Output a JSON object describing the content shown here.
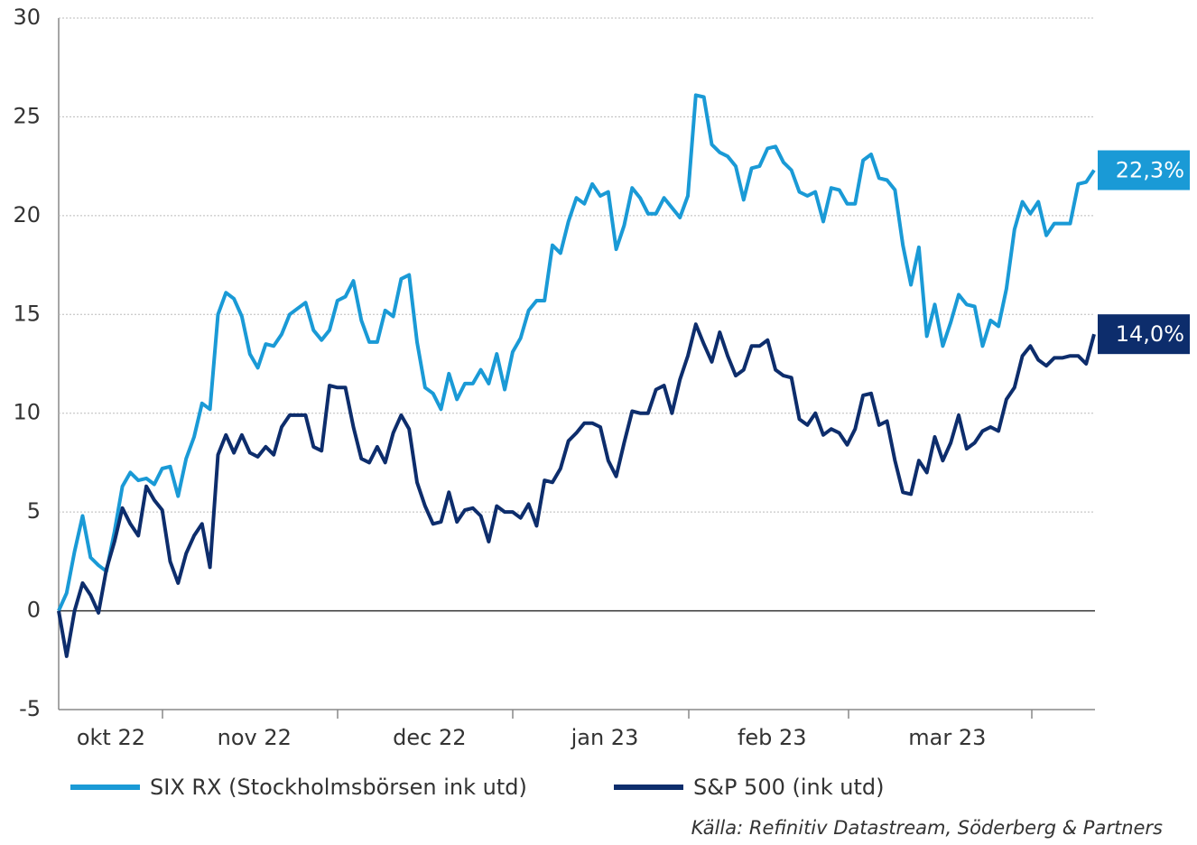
{
  "chart_data": {
    "type": "line",
    "categories": [
      null,
      null,
      null,
      null,
      null,
      null,
      "okt 22",
      null,
      null,
      null,
      null,
      null,
      null,
      null,
      null,
      null,
      null,
      null,
      null,
      null,
      null,
      null,
      null,
      null,
      "nov 22",
      null,
      null,
      null,
      null,
      null,
      null,
      null,
      null,
      null,
      null,
      null,
      null,
      null,
      null,
      null,
      null,
      null,
      null,
      null,
      null,
      null,
      "dec 22",
      null,
      null,
      null,
      null,
      null,
      null,
      null,
      null,
      null,
      null,
      null,
      null,
      null,
      null,
      null,
      null,
      null,
      null,
      null,
      null,
      null,
      "jan 23",
      null,
      null,
      null,
      null,
      null,
      null,
      null,
      null,
      null,
      null,
      null,
      null,
      null,
      null,
      null,
      null,
      null,
      null,
      null,
      null,
      "feb 23",
      null,
      null,
      null,
      null,
      null,
      null,
      null,
      null,
      null,
      null,
      null,
      null,
      null,
      null,
      null,
      null,
      null,
      null,
      null,
      null,
      null,
      "mar 23",
      null,
      null,
      null,
      null,
      null,
      null,
      null,
      null,
      null,
      null,
      null,
      null,
      null,
      null,
      null,
      null,
      null,
      null,
      null
    ],
    "series": [
      {
        "name": "SIX RX (Stockholmsbörsen ink utd)",
        "color": "#1a9ad6",
        "values": [
          0,
          0.9,
          3,
          4.8,
          2.7,
          2.3,
          2,
          4,
          6.3,
          7,
          6.6,
          6.7,
          6.4,
          7.2,
          7.3,
          5.8,
          7.7,
          8.8,
          10.5,
          10.2,
          15,
          16.1,
          15.8,
          14.9,
          13,
          12.3,
          13.5,
          13.4,
          14,
          15,
          15.3,
          15.6,
          14.2,
          13.7,
          14.2,
          15.7,
          15.9,
          16.7,
          14.7,
          13.6,
          13.6,
          15.2,
          14.9,
          16.8,
          17,
          13.6,
          11.3,
          11,
          10.2,
          12,
          10.7,
          11.5,
          11.5,
          12.2,
          11.5,
          13,
          11.2,
          13.1,
          13.8,
          15.2,
          15.7,
          15.7,
          18.5,
          18.1,
          19.7,
          20.9,
          20.6,
          21.6,
          21,
          21.2,
          18.3,
          19.5,
          21.4,
          20.9,
          20.1,
          20.1,
          20.9,
          20.4,
          19.9,
          21,
          26.1,
          26,
          23.6,
          23.2,
          23,
          22.5,
          20.8,
          22.4,
          22.5,
          23.4,
          23.5,
          22.7,
          22.3,
          21.2,
          21,
          21.2,
          19.7,
          21.4,
          21.3,
          20.6,
          20.6,
          22.8,
          23.1,
          21.9,
          21.8,
          21.3,
          18.5,
          16.5,
          18.4,
          13.9,
          15.5,
          13.4,
          14.6,
          16,
          15.5,
          15.4,
          13.4,
          14.7,
          14.4,
          16.3,
          19.3,
          20.7,
          20.1,
          20.7,
          19,
          19.6,
          19.6,
          19.6,
          21.6,
          21.7,
          22.3
        ],
        "value_labels": [
          null,
          null,
          null,
          null,
          null,
          null,
          null,
          null,
          null,
          null,
          null,
          null,
          null,
          null,
          null,
          null,
          null,
          null,
          null,
          null,
          null,
          null,
          null,
          null,
          null,
          null,
          null,
          null,
          null,
          null,
          null,
          null,
          null,
          null,
          null,
          null,
          null,
          null,
          null,
          null,
          null,
          null,
          null,
          null,
          null,
          null,
          null,
          null,
          null,
          null,
          null,
          null,
          null,
          null,
          null,
          null,
          null,
          null,
          null,
          null,
          null,
          null,
          null,
          null,
          null,
          null,
          null,
          null,
          null,
          null,
          null,
          null,
          null,
          null,
          null,
          null,
          null,
          null,
          null,
          null,
          null,
          null,
          null,
          null,
          null,
          null,
          null,
          null,
          null,
          null,
          null,
          null,
          null,
          null,
          null,
          null,
          null,
          null,
          null,
          null,
          null,
          null,
          null,
          null,
          null,
          null,
          null,
          null,
          null,
          null,
          null,
          null,
          null,
          null,
          null,
          null,
          null,
          null,
          null,
          null,
          null,
          null,
          null,
          null,
          null,
          null,
          null,
          null,
          null,
          null,
          "22,3%"
        ]
      },
      {
        "name": "S&P 500 (ink utd)",
        "color": "#0d2d6c",
        "values": [
          0,
          -2.3,
          0,
          1.4,
          0.8,
          -0.1,
          2.1,
          3.5,
          5.2,
          4.4,
          3.8,
          6.3,
          5.6,
          5.1,
          2.5,
          1.4,
          2.9,
          3.8,
          4.4,
          2.2,
          7.9,
          8.9,
          8,
          8.9,
          8,
          7.8,
          8.3,
          7.9,
          9.3,
          9.9,
          9.9,
          9.9,
          8.3,
          8.1,
          11.4,
          11.3,
          11.3,
          9.3,
          7.7,
          7.5,
          8.3,
          7.5,
          9,
          9.9,
          9.2,
          6.5,
          5.3,
          4.4,
          4.5,
          6,
          4.5,
          5.1,
          5.2,
          4.8,
          3.5,
          5.3,
          5,
          5,
          4.7,
          5.4,
          4.3,
          6.6,
          6.5,
          7.2,
          8.6,
          9,
          9.5,
          9.5,
          9.3,
          7.6,
          6.8,
          8.5,
          10.1,
          10,
          10,
          11.2,
          11.4,
          10,
          11.7,
          12.9,
          14.5,
          13.5,
          12.6,
          14.1,
          12.9,
          11.9,
          12.2,
          13.4,
          13.4,
          13.7,
          12.2,
          11.9,
          11.8,
          9.7,
          9.4,
          10,
          8.9,
          9.2,
          9,
          8.4,
          9.2,
          10.9,
          11,
          9.4,
          9.6,
          7.6,
          6,
          5.9,
          7.6,
          7,
          8.8,
          7.6,
          8.5,
          9.9,
          8.2,
          8.5,
          9.1,
          9.3,
          9.1,
          10.7,
          11.3,
          12.9,
          13.4,
          12.7,
          12.4,
          12.8,
          12.8,
          12.9,
          12.9,
          12.5,
          14
        ],
        "value_labels": [
          null,
          null,
          null,
          null,
          null,
          null,
          null,
          null,
          null,
          null,
          null,
          null,
          null,
          null,
          null,
          null,
          null,
          null,
          null,
          null,
          null,
          null,
          null,
          null,
          null,
          null,
          null,
          null,
          null,
          null,
          null,
          null,
          null,
          null,
          null,
          null,
          null,
          null,
          null,
          null,
          null,
          null,
          null,
          null,
          null,
          null,
          null,
          null,
          null,
          null,
          null,
          null,
          null,
          null,
          null,
          null,
          null,
          null,
          null,
          null,
          null,
          null,
          null,
          null,
          null,
          null,
          null,
          null,
          null,
          null,
          null,
          null,
          null,
          null,
          null,
          null,
          null,
          null,
          null,
          null,
          null,
          null,
          null,
          null,
          null,
          null,
          null,
          null,
          null,
          null,
          null,
          null,
          null,
          null,
          null,
          null,
          null,
          null,
          null,
          null,
          null,
          null,
          null,
          null,
          null,
          null,
          null,
          null,
          null,
          null,
          null,
          null,
          null,
          null,
          null,
          null,
          null,
          null,
          null,
          null,
          null,
          null,
          null,
          null,
          null,
          null,
          null,
          null,
          null,
          null,
          "14,0%"
        ]
      }
    ],
    "ylim": [
      -5,
      30
    ],
    "yticks": [
      -5,
      0,
      5,
      10,
      15,
      20,
      25,
      30
    ],
    "grid": true,
    "legend": "bottom",
    "source": "Källa: Refinitiv Datastream, Söderberg & Partners"
  }
}
